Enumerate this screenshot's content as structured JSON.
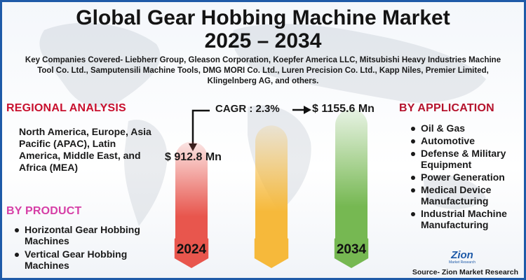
{
  "title": "Global Gear Hobbing Machine Market",
  "years_range": "2025 – 2034",
  "companies": "Key Companies Covered- Liebherr Group, Gleason Corporation, Koepfer America LLC, Mitsubishi Heavy Industries Machine Tool Co. Ltd., Samputensili Machine Tools, DMG MORI Co. Ltd., Luren Precision Co. Ltd., Kapp Niles, Premier Limited, Klingelnberg AG, and others.",
  "regional": {
    "title": "REGIONAL ANALYSIS",
    "text": "North America, Europe, Asia Pacific (APAC), Latin America, Middle East, and Africa (MEA)"
  },
  "product": {
    "title": "BY PRODUCT",
    "items": [
      "Horizontal Gear Hobbing Machines",
      "Vertical Gear Hobbing Machines"
    ]
  },
  "application": {
    "title": "BY APPLICATION",
    "items": [
      "Oil & Gas",
      "Automotive",
      "Defense & Military Equipment",
      "Power Generation",
      "Medical Device Manufacturing",
      "Industrial Machine Manufacturing"
    ]
  },
  "cagr_label": "CAGR : 2.3%",
  "source": "Source- Zion Market Research",
  "logo": {
    "name": "Zion",
    "tagline": "Market Research"
  },
  "colors": {
    "red_bar": "#e8564d",
    "yellow_bar": "#f6b93b",
    "green_bar": "#76b852",
    "title_red": "#c8102e",
    "product_pink": "#d63ea6",
    "border_blue": "#1e5aa8"
  },
  "chart_data": {
    "type": "bar",
    "categories": [
      "2024",
      "",
      "2034"
    ],
    "values": [
      912.8,
      null,
      1155.6
    ],
    "value_labels": [
      "$ 912.8 Mn",
      "",
      "$ 1155.6 Mn"
    ],
    "unit": "USD Million",
    "cagr": "2.3%"
  }
}
